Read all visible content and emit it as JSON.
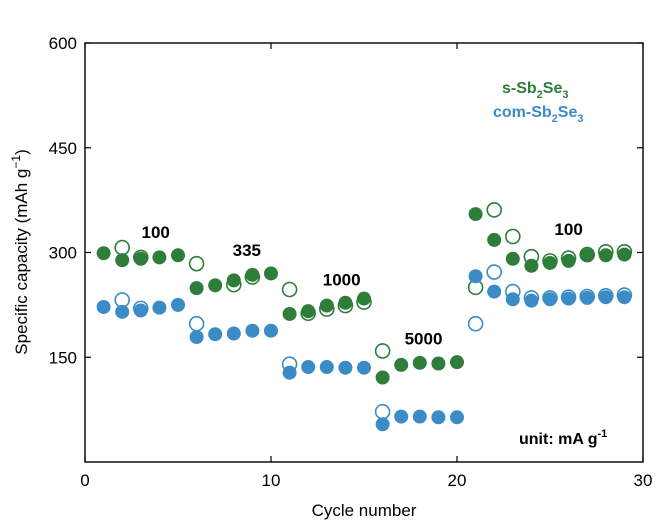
{
  "chart_data": {
    "type": "scatter",
    "xlabel": "Cycle number",
    "ylabel": "Specific capacity (mAh g⁻¹)",
    "xlim": [
      0,
      30
    ],
    "ylim": [
      0,
      600
    ],
    "x_ticks": [
      0,
      10,
      20,
      30
    ],
    "y_ticks": [
      150,
      300,
      450,
      600
    ],
    "grid": false,
    "legend_placement": "top-right",
    "unit_note": "unit: mA g⁻¹",
    "rate_labels": [
      {
        "text": "100",
        "x": 3.8,
        "y": 321
      },
      {
        "text": "335",
        "x": 8.7,
        "y": 295
      },
      {
        "text": "1000",
        "x": 13.8,
        "y": 253
      },
      {
        "text": "5000",
        "x": 18.2,
        "y": 168
      },
      {
        "text": "100",
        "x": 26.0,
        "y": 325
      }
    ],
    "series": [
      {
        "name": "s-Sb₂Se₃",
        "color": "#2e7d3a",
        "marker": "filled",
        "x": [
          1,
          2,
          3,
          4,
          5,
          6,
          7,
          8,
          9,
          10,
          11,
          12,
          13,
          14,
          15,
          16,
          17,
          18,
          19,
          20,
          21,
          22,
          23,
          24,
          25,
          26,
          27,
          28,
          29
        ],
        "y": [
          299,
          289,
          291,
          293,
          296,
          249,
          253,
          260,
          268,
          270,
          212,
          216,
          224,
          228,
          234,
          121,
          139,
          142,
          141,
          143,
          355,
          318,
          291,
          281,
          285,
          288,
          296,
          296,
          297
        ]
      },
      {
        "name": "s-Sb₂Se₃ (open)",
        "color": "#2e7d3a",
        "marker": "open",
        "x": [
          2,
          3,
          6,
          8,
          9,
          11,
          12,
          13,
          14,
          15,
          16,
          21,
          22,
          23,
          24,
          25,
          26,
          27,
          28,
          29
        ],
        "y": [
          307,
          293,
          284,
          254,
          265,
          247,
          213,
          219,
          224,
          229,
          159,
          250,
          361,
          323,
          294,
          288,
          292,
          297,
          301,
          301
        ]
      },
      {
        "name": "com-Sb₂Se₃",
        "color": "#3b8bc6",
        "marker": "filled",
        "x": [
          1,
          2,
          3,
          4,
          5,
          6,
          7,
          8,
          9,
          10,
          11,
          12,
          13,
          14,
          15,
          16,
          17,
          18,
          19,
          20,
          21,
          22,
          23,
          24,
          25,
          26,
          27,
          28,
          29
        ],
        "y": [
          222,
          215,
          217,
          221,
          225,
          179,
          183,
          184,
          188,
          188,
          128,
          136,
          136,
          135,
          135,
          54,
          65,
          65,
          64,
          64,
          266,
          244,
          233,
          231,
          233,
          234,
          235,
          236,
          236
        ]
      },
      {
        "name": "com-Sb₂Se₃ (open)",
        "color": "#3b8bc6",
        "marker": "open",
        "x": [
          2,
          3,
          6,
          11,
          16,
          21,
          22,
          23,
          24,
          25,
          26,
          27,
          28,
          29
        ],
        "y": [
          232,
          220,
          198,
          140,
          72,
          198,
          272,
          244,
          235,
          235,
          236,
          237,
          238,
          239
        ]
      }
    ]
  },
  "legend": {
    "s_prefix": "s-Sb",
    "s_sub1": "2",
    "s_mid": "Se",
    "s_sub2": "3",
    "com_prefix": "com-Sb",
    "com_sub1": "2",
    "com_mid": "Se",
    "com_sub2": "3"
  },
  "labels": {
    "y_main": "Specific capacity (mAh g",
    "y_sup": "−1",
    "y_close": ")",
    "x_title": "Cycle number",
    "unit_main": "unit: mA g",
    "unit_sup": "-1"
  }
}
